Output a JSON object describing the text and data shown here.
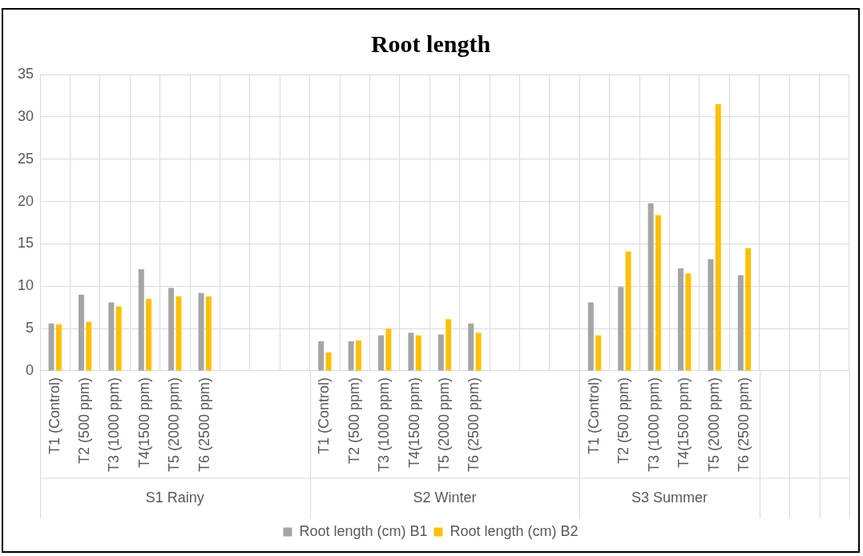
{
  "chart_data": {
    "type": "bar",
    "title": "Root length",
    "categories": [
      "T1 (Control)",
      "T2 (500 ppm)",
      "T3 (1000 ppm)",
      "T4(1500 ppm)",
      "T5 (2000 ppm)",
      "T6 (2500 ppm)",
      null,
      null,
      null,
      "T1 (Control)",
      "T2 (500 ppm)",
      "T3 (1000 ppm)",
      "T4(1500 ppm)",
      "T5 (2000 ppm)",
      "T6 (2500 ppm)",
      null,
      null,
      null,
      "T1 (Control)",
      "T2 (500 ppm)",
      "T3 (1000 ppm)",
      "T4(1500 ppm)",
      "T5 (2000 ppm)",
      "T6 (2500 ppm)",
      null,
      null,
      null
    ],
    "series": [
      {
        "name": "Root length (cm) B1",
        "color": "#a5a5a5",
        "values": [
          5.6,
          9,
          8.1,
          12,
          9.8,
          9.2,
          null,
          null,
          null,
          3.5,
          3.5,
          4.2,
          4.5,
          4.3,
          5.6,
          null,
          null,
          null,
          8.1,
          9.9,
          19.8,
          12.1,
          13.2,
          11.3,
          null,
          null,
          null
        ]
      },
      {
        "name": "Root length (cm) B2",
        "color": "#ffc000",
        "values": [
          5.5,
          5.8,
          7.6,
          8.5,
          8.8,
          8.8,
          null,
          null,
          null,
          2.2,
          3.6,
          5.0,
          4.2,
          6.1,
          4.5,
          null,
          null,
          null,
          4.2,
          14.1,
          18.4,
          11.5,
          31.5,
          14.5,
          null,
          null,
          null
        ]
      }
    ],
    "annotations": [
      "S1 Rainy",
      "S2 Winter",
      "S3 Summer"
    ],
    "ylim": [
      0,
      35
    ],
    "yticks": [
      0,
      5,
      10,
      15,
      20,
      25,
      30,
      35
    ],
    "grid": true,
    "legend": "bottom"
  }
}
